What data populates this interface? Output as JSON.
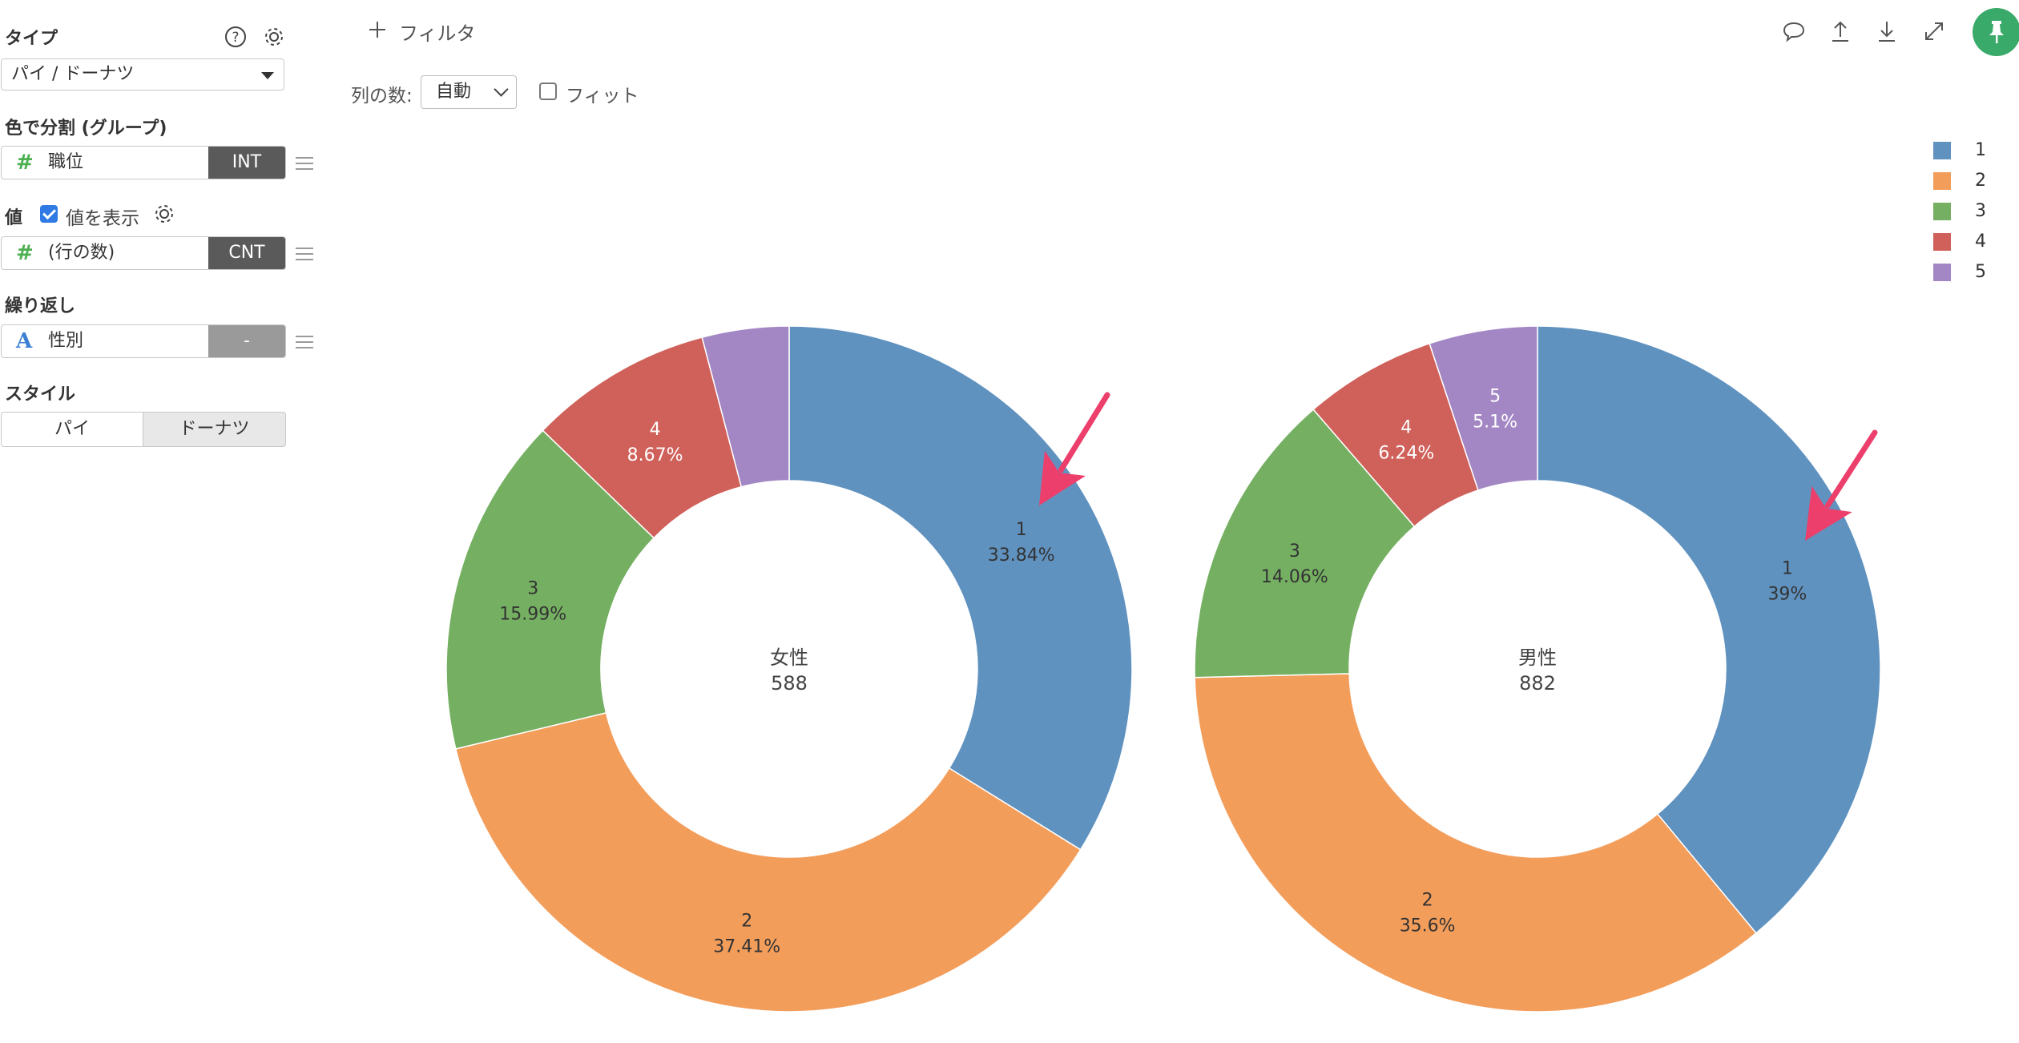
{
  "sidebar": {
    "type_section": {
      "title": "タイプ",
      "selected": "パイ / ドーナツ"
    },
    "color_section": {
      "title": "色で分割 (グループ)",
      "field": {
        "label": "職位",
        "badge": "INT"
      }
    },
    "value_section": {
      "title": "値",
      "show_values_label": "値を表示",
      "show_values_checked": true,
      "field": {
        "label": "(行の数)",
        "badge": "CNT"
      }
    },
    "repeat_section": {
      "title": "繰り返し",
      "field": {
        "label": "性別",
        "badge": "-"
      }
    },
    "style_section": {
      "title": "スタイル",
      "options": [
        "パイ",
        "ドーナツ"
      ],
      "selected": "ドーナツ"
    }
  },
  "topbar": {
    "filter_label": "フィルタ",
    "columns_label": "列の数:",
    "columns_value": "自動",
    "fit_label": "フィット",
    "fit_checked": false,
    "icons": [
      "comment-icon",
      "upload-icon",
      "download-icon",
      "expand-icon",
      "pin-icon"
    ]
  },
  "colors": {
    "1": "#6092c0",
    "2": "#f39d5b",
    "3": "#75b062",
    "4": "#d0605a",
    "5": "#a387c4",
    "accent_green": "#3aaa6a",
    "annotation_arrow": "#ec3f6b"
  },
  "legend": [
    "1",
    "2",
    "3",
    "4",
    "5"
  ],
  "chart_data": [
    {
      "type": "pie",
      "style": "donut",
      "center_title": "女性",
      "center_value": "588",
      "slices": [
        {
          "name": "1",
          "value": 33.84,
          "label": "33.84%"
        },
        {
          "name": "2",
          "value": 37.41,
          "label": "37.41%"
        },
        {
          "name": "3",
          "value": 15.99,
          "label": "15.99%"
        },
        {
          "name": "4",
          "value": 8.67,
          "label": "8.67%"
        },
        {
          "name": "5",
          "value": 4.09,
          "label": ""
        }
      ],
      "annotation": "arrow pointing at slice 1"
    },
    {
      "type": "pie",
      "style": "donut",
      "center_title": "男性",
      "center_value": "882",
      "slices": [
        {
          "name": "1",
          "value": 39,
          "label": "39%"
        },
        {
          "name": "2",
          "value": 35.6,
          "label": "35.6%"
        },
        {
          "name": "3",
          "value": 14.06,
          "label": "14.06%"
        },
        {
          "name": "4",
          "value": 6.24,
          "label": "6.24%"
        },
        {
          "name": "5",
          "value": 5.1,
          "label": "5.1%"
        }
      ],
      "annotation": "arrow pointing at slice 1"
    }
  ]
}
